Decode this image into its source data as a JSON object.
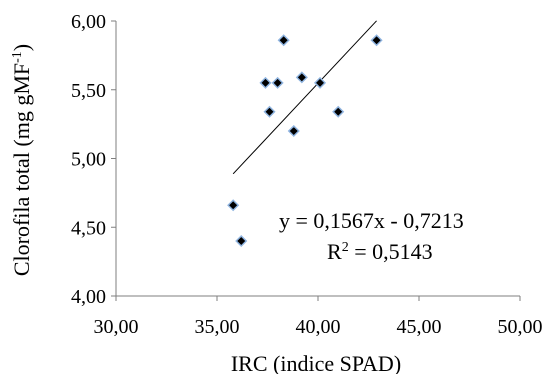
{
  "chart_data": {
    "type": "scatter",
    "xlabel": "IRC (indice SPAD)",
    "ylabel_main": "Clorofila total (mg gMF",
    "ylabel_sup": "-1",
    "ylabel_close": ")",
    "xlim": [
      30,
      50
    ],
    "ylim": [
      4,
      6
    ],
    "x_ticks": [
      30,
      35,
      40,
      45,
      50
    ],
    "y_ticks": [
      4.0,
      4.5,
      5.0,
      5.5,
      6.0
    ],
    "x_tick_labels": [
      "30,00",
      "35,00",
      "40,00",
      "45,00",
      "50,00"
    ],
    "y_tick_labels": [
      "4,00",
      "4,50",
      "5,00",
      "5,50",
      "6,00"
    ],
    "points": [
      {
        "x": 35.8,
        "y": 4.66
      },
      {
        "x": 36.2,
        "y": 4.4
      },
      {
        "x": 37.4,
        "y": 5.55
      },
      {
        "x": 37.6,
        "y": 5.34
      },
      {
        "x": 38.0,
        "y": 5.55
      },
      {
        "x": 38.3,
        "y": 5.86
      },
      {
        "x": 38.8,
        "y": 5.2
      },
      {
        "x": 39.2,
        "y": 5.59
      },
      {
        "x": 40.1,
        "y": 5.55
      },
      {
        "x": 41.0,
        "y": 5.34
      },
      {
        "x": 42.9,
        "y": 5.86
      }
    ],
    "trendline": {
      "slope": 0.1567,
      "intercept": -0.7213,
      "x_range": [
        35.8,
        42.9
      ]
    },
    "equation_text": "y = 0,1567x - 0,7213",
    "r2_prefix": "R",
    "r2_sup": "2",
    "r2_suffix": " = 0,5143",
    "grid": false,
    "legend": "none",
    "colors": {
      "marker_fill": "#000000",
      "marker_stroke": "#8fb4e0",
      "trendline": "#000000",
      "axis": "#7f7f7f"
    }
  }
}
